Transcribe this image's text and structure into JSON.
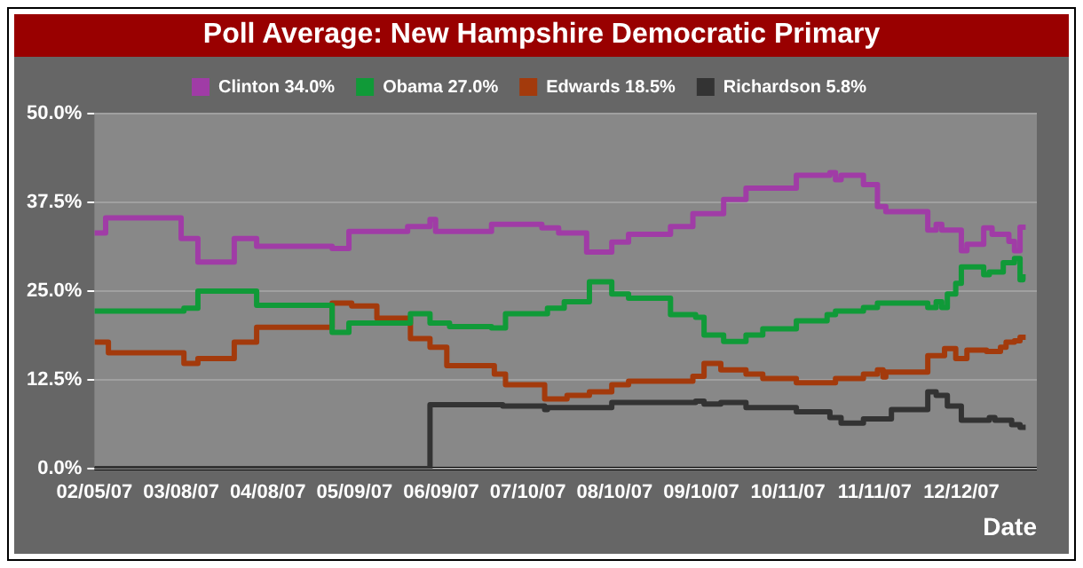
{
  "chart_data": {
    "type": "step",
    "title": "Poll Average: New Hampshire Democratic Primary",
    "xlabel": "Date",
    "xlim": [
      "2007-02-05",
      "2008-01-08"
    ],
    "xticks": [
      {
        "value": "2007-02-05",
        "label": "02/05/07"
      },
      {
        "value": "2007-03-08",
        "label": "03/08/07"
      },
      {
        "value": "2007-04-08",
        "label": "04/08/07"
      },
      {
        "value": "2007-05-09",
        "label": "05/09/07"
      },
      {
        "value": "2007-06-09",
        "label": "06/09/07"
      },
      {
        "value": "2007-07-10",
        "label": "07/10/07"
      },
      {
        "value": "2007-08-10",
        "label": "08/10/07"
      },
      {
        "value": "2007-09-10",
        "label": "09/10/07"
      },
      {
        "value": "2007-10-11",
        "label": "10/11/07"
      },
      {
        "value": "2007-11-11",
        "label": "11/11/07"
      },
      {
        "value": "2007-12-12",
        "label": "12/12/07"
      }
    ],
    "ylim": [
      0,
      50
    ],
    "yticks": [
      {
        "value": 0,
        "label": "0.0%"
      },
      {
        "value": 12.5,
        "label": "12.5%"
      },
      {
        "value": 25,
        "label": "25.0%"
      },
      {
        "value": 37.5,
        "label": "37.5%"
      },
      {
        "value": 50,
        "label": "50.0%"
      }
    ],
    "grid": "y",
    "legend": "top",
    "marker": "none",
    "line_style": "solid",
    "series": [
      {
        "name": "Clinton 34.0%",
        "color": "#a03ca6",
        "x": [
          "2007-02-05",
          "2007-02-09",
          "2007-03-08",
          "2007-03-14",
          "2007-03-27",
          "2007-04-04",
          "2007-05-01",
          "2007-05-07",
          "2007-05-28",
          "2007-06-05",
          "2007-06-07",
          "2007-06-27",
          "2007-07-15",
          "2007-07-21",
          "2007-07-31",
          "2007-08-09",
          "2007-08-15",
          "2007-08-30",
          "2007-09-07",
          "2007-09-18",
          "2007-09-26",
          "2007-10-14",
          "2007-10-26",
          "2007-10-28",
          "2007-10-30",
          "2007-11-07",
          "2007-11-12",
          "2007-11-15",
          "2007-11-30",
          "2007-12-03",
          "2007-12-05",
          "2007-12-12",
          "2007-12-14",
          "2007-12-20",
          "2007-12-23",
          "2007-12-29",
          "2007-12-31",
          "2008-01-02",
          "2008-01-04"
        ],
        "values": [
          33.2,
          35.3,
          32.4,
          29.1,
          32.4,
          31.3,
          31.0,
          33.4,
          34.1,
          35.1,
          33.4,
          34.4,
          33.9,
          33.2,
          30.5,
          31.9,
          33.0,
          34.1,
          35.9,
          37.9,
          39.5,
          41.3,
          41.7,
          40.7,
          41.3,
          40.0,
          36.9,
          36.2,
          33.6,
          34.4,
          33.6,
          30.7,
          31.6,
          33.9,
          33.0,
          32.0,
          30.7,
          34.0,
          34.0
        ]
      },
      {
        "name": "Obama 27.0%",
        "color": "#109a38",
        "x": [
          "2007-02-05",
          "2007-03-09",
          "2007-03-14",
          "2007-04-04",
          "2007-05-01",
          "2007-05-07",
          "2007-05-29",
          "2007-06-05",
          "2007-06-12",
          "2007-06-27",
          "2007-07-02",
          "2007-07-17",
          "2007-07-23",
          "2007-08-01",
          "2007-08-09",
          "2007-08-15",
          "2007-08-30",
          "2007-09-08",
          "2007-09-11",
          "2007-09-18",
          "2007-09-26",
          "2007-10-02",
          "2007-10-14",
          "2007-10-25",
          "2007-10-28",
          "2007-11-07",
          "2007-11-12",
          "2007-11-30",
          "2007-12-03",
          "2007-12-05",
          "2007-12-07",
          "2007-12-10",
          "2007-12-12",
          "2007-12-20",
          "2007-12-22",
          "2007-12-27",
          "2007-12-31",
          "2008-01-02",
          "2008-01-03",
          "2008-01-04"
        ],
        "values": [
          22.2,
          22.6,
          25.0,
          23.0,
          19.2,
          20.5,
          21.8,
          20.5,
          20.0,
          19.8,
          21.8,
          22.6,
          23.5,
          26.3,
          24.6,
          24.0,
          21.7,
          21.3,
          18.8,
          17.9,
          18.8,
          19.7,
          20.8,
          21.7,
          22.2,
          22.7,
          23.3,
          22.7,
          23.5,
          22.7,
          24.6,
          26.1,
          28.4,
          27.3,
          27.7,
          29.0,
          29.6,
          26.6,
          27.0,
          27.0
        ]
      },
      {
        "name": "Edwards 18.5%",
        "color": "#a33a0c",
        "x": [
          "2007-02-05",
          "2007-02-10",
          "2007-03-09",
          "2007-03-14",
          "2007-03-27",
          "2007-04-04",
          "2007-05-01",
          "2007-05-08",
          "2007-05-17",
          "2007-05-29",
          "2007-06-05",
          "2007-06-11",
          "2007-06-28",
          "2007-07-02",
          "2007-07-16",
          "2007-07-24",
          "2007-08-01",
          "2007-08-09",
          "2007-08-15",
          "2007-09-07",
          "2007-09-11",
          "2007-09-17",
          "2007-09-26",
          "2007-10-02",
          "2007-10-14",
          "2007-10-28",
          "2007-11-07",
          "2007-11-12",
          "2007-11-14",
          "2007-11-15",
          "2007-11-30",
          "2007-12-06",
          "2007-12-10",
          "2007-12-14",
          "2007-12-21",
          "2007-12-26",
          "2007-12-28",
          "2007-12-31",
          "2008-01-02",
          "2008-01-04"
        ],
        "values": [
          17.8,
          16.3,
          14.8,
          15.5,
          17.8,
          19.9,
          23.3,
          22.9,
          21.2,
          18.3,
          17.1,
          14.5,
          13.3,
          11.8,
          9.8,
          10.3,
          10.8,
          11.8,
          12.3,
          13.0,
          14.8,
          13.9,
          13.3,
          12.7,
          12.1,
          12.7,
          13.3,
          13.9,
          12.9,
          13.6,
          15.9,
          16.9,
          15.5,
          16.7,
          16.5,
          17.1,
          17.8,
          18.0,
          18.5,
          18.5
        ]
      },
      {
        "name": "Richardson 5.8%",
        "color": "#333333",
        "x": [
          "2007-02-05",
          "2007-06-05",
          "2007-07-01",
          "2007-07-16",
          "2007-07-17",
          "2007-08-09",
          "2007-09-08",
          "2007-09-11",
          "2007-09-17",
          "2007-09-26",
          "2007-10-14",
          "2007-10-26",
          "2007-10-30",
          "2007-11-07",
          "2007-11-17",
          "2007-11-30",
          "2007-12-03",
          "2007-12-07",
          "2007-12-12",
          "2007-12-22",
          "2007-12-24",
          "2007-12-30",
          "2008-01-02",
          "2008-01-04"
        ],
        "values": [
          0,
          9.0,
          8.8,
          8.3,
          8.6,
          9.3,
          9.5,
          9.1,
          9.3,
          8.6,
          8.0,
          7.2,
          6.4,
          7.0,
          8.3,
          10.8,
          10.3,
          8.8,
          6.8,
          7.2,
          6.8,
          6.2,
          5.8,
          5.8
        ]
      }
    ]
  }
}
